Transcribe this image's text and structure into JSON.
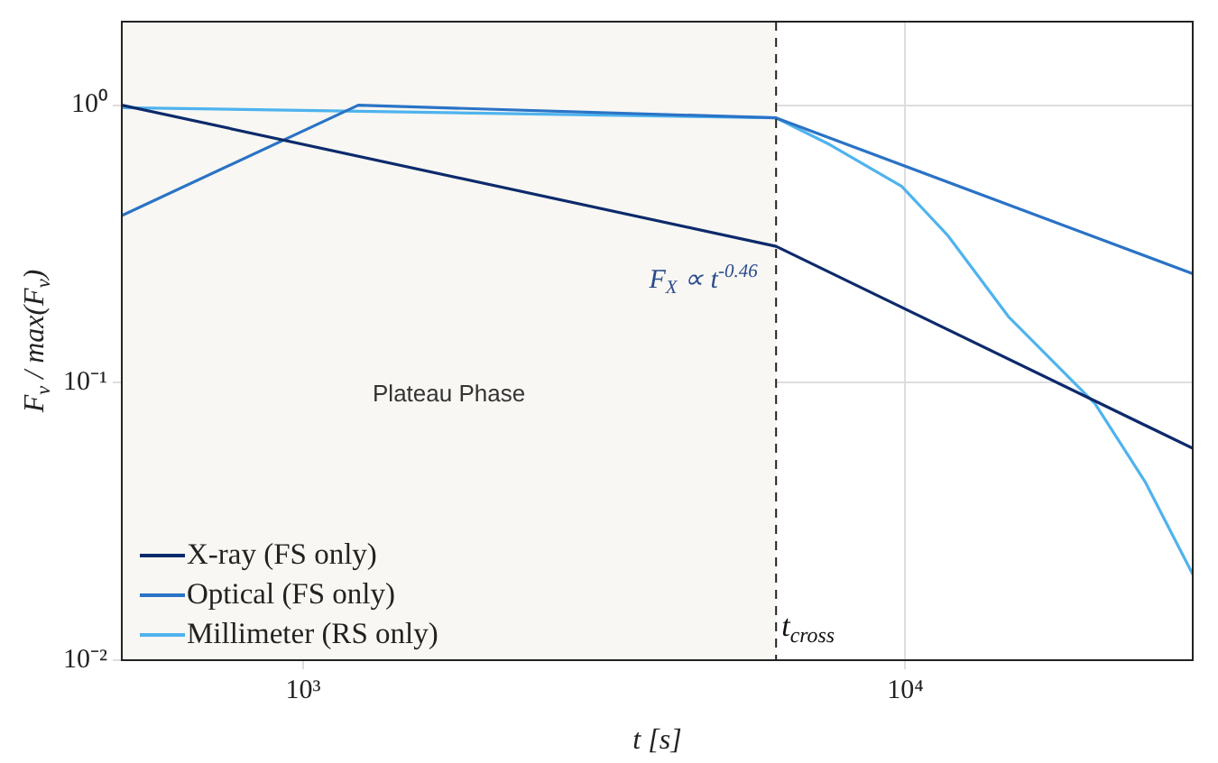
{
  "chart_data": {
    "type": "line",
    "xlabel": "t [s]",
    "ylabel": "F$_{ν}$ / max(F$_{ν}$)",
    "log": "xy",
    "grid": true,
    "legend": "bottom left",
    "marker": "none",
    "line_style": "solid",
    "xlim": [
      500,
      30000
    ],
    "xticks": [
      {
        "value": 1000,
        "label": "10³"
      },
      {
        "value": 10000,
        "label": "10⁴"
      }
    ],
    "ylim": [
      0.01,
      2
    ],
    "yticks": [
      {
        "value": 0.01,
        "label": "10⁻²"
      },
      {
        "value": 0.1,
        "label": "10⁻¹"
      },
      {
        "value": 1,
        "label": "10⁰"
      }
    ],
    "series": [
      {
        "name": "X-ray (FS only)",
        "color": "#0d2a6b",
        "x": [
          500,
          6100,
          30000
        ],
        "values": [
          1.0,
          0.31,
          0.058
        ]
      },
      {
        "name": "Optical (FS only)",
        "color": "#2a73c6",
        "x": [
          500,
          1235,
          6100,
          30000
        ],
        "values": [
          0.4,
          1.0,
          0.9,
          0.247
        ]
      },
      {
        "name": "Millimeter (RS only)",
        "color": "#4fb3ee",
        "x": [
          500,
          6100,
          7500,
          9860,
          11750,
          14830,
          20650,
          25000,
          30000
        ],
        "values": [
          0.98,
          0.9,
          0.72,
          0.51,
          0.34,
          0.173,
          0.084,
          0.044,
          0.0204
        ]
      }
    ],
    "bands": [
      {
        "axis": "x",
        "from": 500,
        "to": 6100,
        "label": "Plateau Phase",
        "color": "#f8f7f3"
      }
    ],
    "ref_lines": [
      {
        "axis": "x",
        "value": 6100,
        "label": "t$_{cross}$",
        "color": "#222222",
        "line_style": "dashed"
      }
    ],
    "annotations": [
      "F$_{X}$ ∝ t$^{-0.46}$"
    ]
  }
}
